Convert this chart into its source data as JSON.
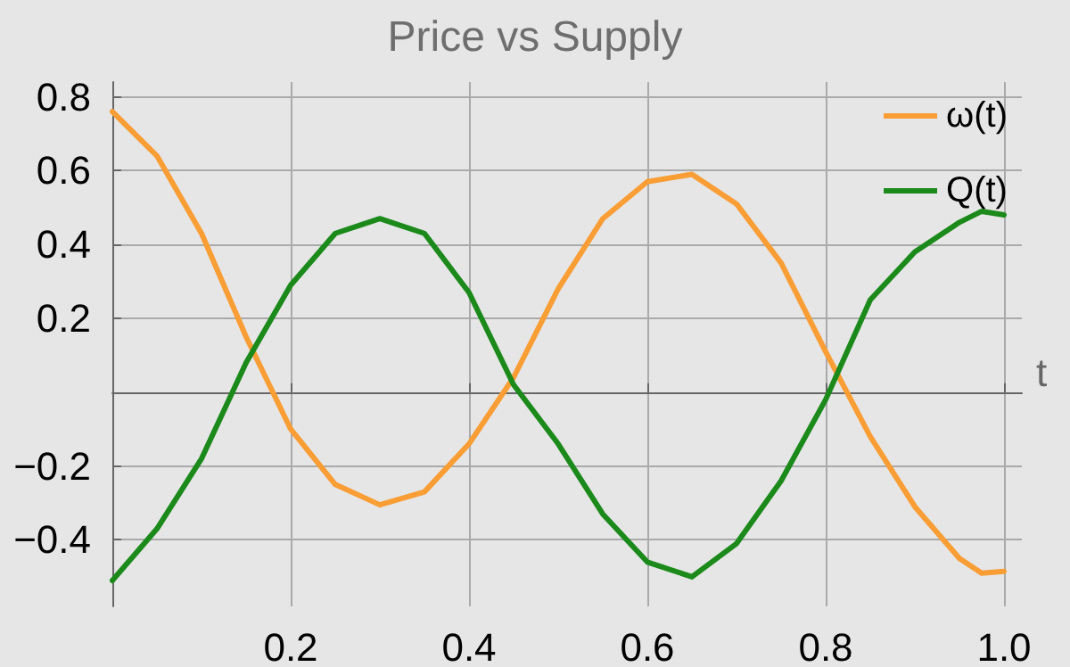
{
  "chart_data": {
    "type": "line",
    "title": "Price vs Supply",
    "xlabel": "t",
    "x": [
      0,
      0.05,
      0.1,
      0.15,
      0.2,
      0.25,
      0.3,
      0.35,
      0.4,
      0.45,
      0.5,
      0.55,
      0.6,
      0.65,
      0.7,
      0.75,
      0.8,
      0.85,
      0.9,
      0.95,
      0.975,
      1.0
    ],
    "series": [
      {
        "name": "ω(t)",
        "color": "#f99d35",
        "values": [
          0.76,
          0.64,
          0.43,
          0.15,
          -0.1,
          -0.25,
          -0.305,
          -0.27,
          -0.14,
          0.04,
          0.28,
          0.47,
          0.57,
          0.59,
          0.51,
          0.35,
          0.11,
          -0.12,
          -0.31,
          -0.45,
          -0.49,
          -0.485
        ]
      },
      {
        "name": "Q(t)",
        "color": "#1b8a1b",
        "values": [
          -0.51,
          -0.37,
          -0.18,
          0.08,
          0.29,
          0.43,
          0.47,
          0.43,
          0.27,
          0.02,
          -0.14,
          -0.33,
          -0.46,
          -0.5,
          -0.41,
          -0.24,
          -0.02,
          0.25,
          0.38,
          0.46,
          0.49,
          0.48
        ]
      }
    ],
    "xlim": [
      0,
      1.02
    ],
    "xticks": [
      0.2,
      0.4,
      0.6,
      0.8,
      {
        "value": 1.0,
        "label": "1.0"
      }
    ],
    "ylim": [
      -0.58,
      0.84
    ],
    "yticks": [
      -0.4,
      -0.2,
      0.2,
      0.4,
      0.6,
      0.8
    ],
    "grid": true,
    "legend": "top right",
    "marker": "none",
    "line_style": "solid"
  }
}
